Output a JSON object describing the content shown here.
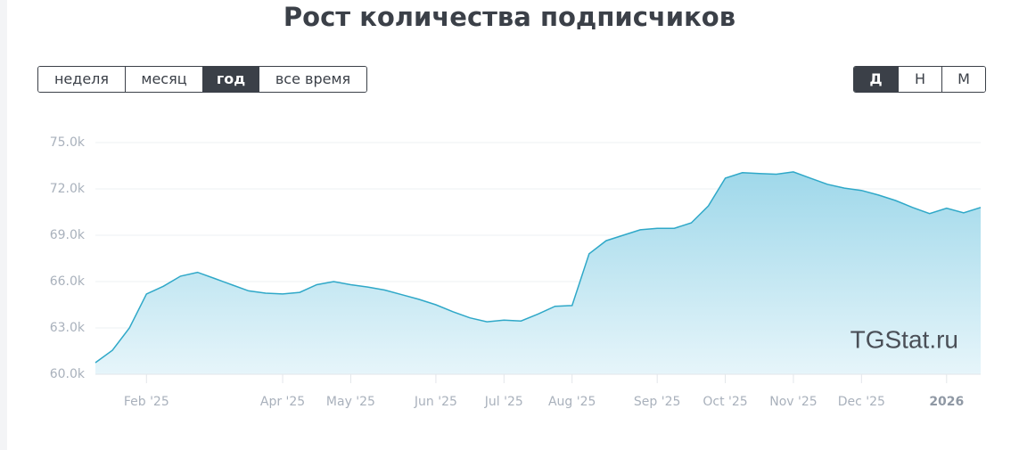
{
  "period_buttons": [
    {
      "label": "неделя"
    },
    {
      "label": "месяц"
    },
    {
      "label": "год",
      "active": true
    },
    {
      "label": "все время"
    }
  ],
  "scale_buttons": [
    {
      "label": "Д",
      "active": true
    },
    {
      "label": "Н"
    },
    {
      "label": "М"
    }
  ],
  "chart_data": {
    "type": "area",
    "title": "Рост количества подписчиков",
    "watermark": "TGStat.ru",
    "categories": [
      null,
      null,
      null,
      "Feb '25",
      null,
      null,
      null,
      null,
      null,
      null,
      null,
      "Apr '25",
      null,
      null,
      null,
      "May '25",
      null,
      null,
      null,
      null,
      "Jun '25",
      null,
      null,
      null,
      "Jul '25",
      null,
      null,
      null,
      "Aug '25",
      null,
      null,
      null,
      null,
      "Sep '25",
      null,
      null,
      null,
      "Oct '25",
      null,
      null,
      null,
      "Nov '25",
      null,
      null,
      null,
      "Dec '25",
      null,
      null,
      null,
      null,
      "2026",
      null,
      null
    ],
    "series": [
      {
        "name": "subscribers",
        "color": "#2fa8c8",
        "values": [
          60750,
          61550,
          63000,
          65200,
          65700,
          66350,
          66600,
          66200,
          65800,
          65400,
          65250,
          65200,
          65300,
          65800,
          66000,
          65800,
          65650,
          65450,
          65150,
          64850,
          64500,
          64050,
          63650,
          63400,
          63500,
          63450,
          63900,
          64400,
          64450,
          67800,
          68650,
          69000,
          69350,
          69450,
          69450,
          69800,
          70900,
          72700,
          73050,
          73000,
          72950,
          73100,
          72700,
          72300,
          72050,
          71900,
          71600,
          71250,
          70800,
          70400,
          70750,
          70450,
          70800
        ]
      }
    ],
    "ylim": [
      60000,
      75000
    ],
    "yticks": [
      {
        "value": 60000,
        "label": "60.0k"
      },
      {
        "value": 63000,
        "label": "63.0k"
      },
      {
        "value": 66000,
        "label": "66.0k"
      },
      {
        "value": 69000,
        "label": "69.0k"
      },
      {
        "value": 72000,
        "label": "72.0k"
      },
      {
        "value": 75000,
        "label": "75.0k"
      }
    ],
    "grid": true
  }
}
